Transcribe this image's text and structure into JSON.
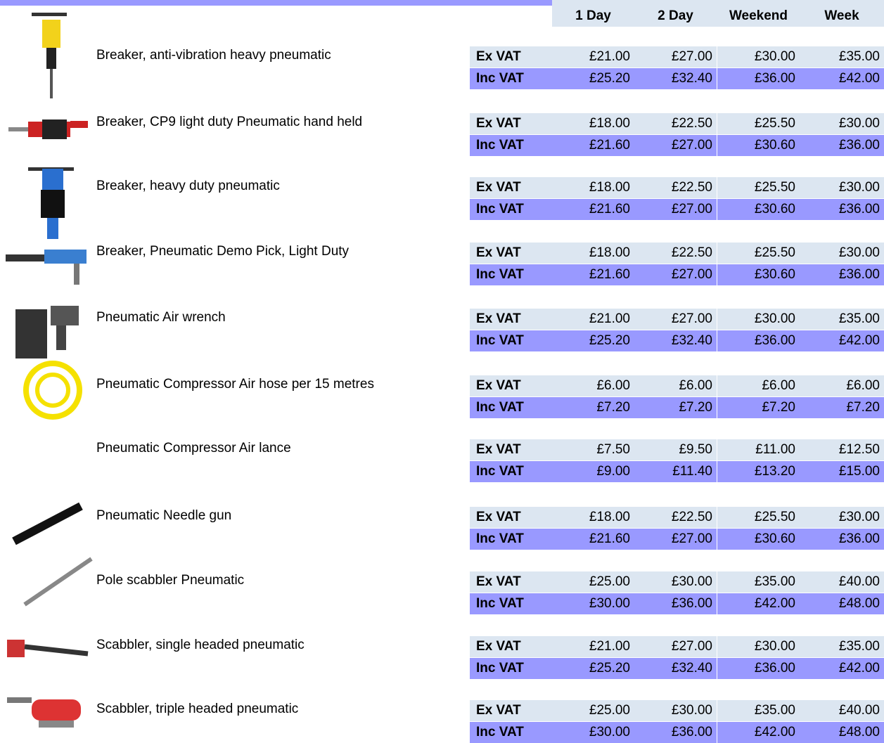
{
  "header": {
    "columns": [
      "1 Day",
      "2 Day",
      "Weekend",
      "Week"
    ]
  },
  "products": [
    {
      "name": "Breaker, anti-vibration heavy pneumatic",
      "ex_label": "Ex VAT",
      "inc_label": "Inc VAT",
      "ex": [
        "£21.00",
        "£27.00",
        "£30.00",
        "£35.00"
      ],
      "inc": [
        "£25.20",
        "£32.40",
        "£36.00",
        "£42.00"
      ]
    },
    {
      "name": "Breaker, CP9 light duty Pneumatic hand held",
      "ex_label": "Ex VAT",
      "inc_label": "Inc VAT",
      "ex": [
        "£18.00",
        "£22.50",
        "£25.50",
        "£30.00"
      ],
      "inc": [
        "£21.60",
        "£27.00",
        "£30.60",
        "£36.00"
      ]
    },
    {
      "name": "Breaker, heavy duty pneumatic",
      "ex_label": "Ex VAT",
      "inc_label": "Inc VAT",
      "ex": [
        "£18.00",
        "£22.50",
        "£25.50",
        "£30.00"
      ],
      "inc": [
        "£21.60",
        "£27.00",
        "£30.60",
        "£36.00"
      ]
    },
    {
      "name": "Breaker, Pneumatic Demo Pick, Light Duty",
      "ex_label": "Ex VAT",
      "inc_label": "Inc VAT",
      "ex": [
        "£18.00",
        "£22.50",
        "£25.50",
        "£30.00"
      ],
      "inc": [
        "£21.60",
        "£27.00",
        "£30.60",
        "£36.00"
      ]
    },
    {
      "name": "Pneumatic Air wrench",
      "ex_label": "Ex VAT",
      "inc_label": "Inc VAT",
      "ex": [
        "£21.00",
        "£27.00",
        "£30.00",
        "£35.00"
      ],
      "inc": [
        "£25.20",
        "£32.40",
        "£36.00",
        "£42.00"
      ]
    },
    {
      "name": "Pneumatic Compressor Air hose per 15 metres",
      "ex_label": "Ex VAT",
      "inc_label": "Inc VAT",
      "ex": [
        "£6.00",
        "£6.00",
        "£6.00",
        "£6.00"
      ],
      "inc": [
        "£7.20",
        "£7.20",
        "£7.20",
        "£7.20"
      ]
    },
    {
      "name": "Pneumatic Compressor Air lance",
      "ex_label": "Ex VAT",
      "inc_label": "Inc VAT",
      "ex": [
        "£7.50",
        "£9.50",
        "£11.00",
        "£12.50"
      ],
      "inc": [
        "£9.00",
        "£11.40",
        "£13.20",
        "£15.00"
      ]
    },
    {
      "name": "Pneumatic Needle gun",
      "ex_label": "Ex VAT",
      "inc_label": "Inc VAT",
      "ex": [
        "£18.00",
        "£22.50",
        "£25.50",
        "£30.00"
      ],
      "inc": [
        "£21.60",
        "£27.00",
        "£30.60",
        "£36.00"
      ]
    },
    {
      "name": "Pole scabbler Pneumatic",
      "ex_label": "Ex VAT",
      "inc_label": "Inc VAT",
      "ex": [
        "£25.00",
        "£30.00",
        "£35.00",
        "£40.00"
      ],
      "inc": [
        "£30.00",
        "£36.00",
        "£42.00",
        "£48.00"
      ]
    },
    {
      "name": "Scabbler, single headed pneumatic",
      "ex_label": "Ex VAT",
      "inc_label": "Inc VAT",
      "ex": [
        "£21.00",
        "£27.00",
        "£30.00",
        "£35.00"
      ],
      "inc": [
        "£25.20",
        "£32.40",
        "£36.00",
        "£42.00"
      ]
    },
    {
      "name": "Scabbler, triple headed pneumatic",
      "ex_label": "Ex VAT",
      "inc_label": "Inc VAT",
      "ex": [
        "£25.00",
        "£30.00",
        "£35.00",
        "£40.00"
      ],
      "inc": [
        "£30.00",
        "£36.00",
        "£42.00",
        "£48.00"
      ]
    }
  ]
}
